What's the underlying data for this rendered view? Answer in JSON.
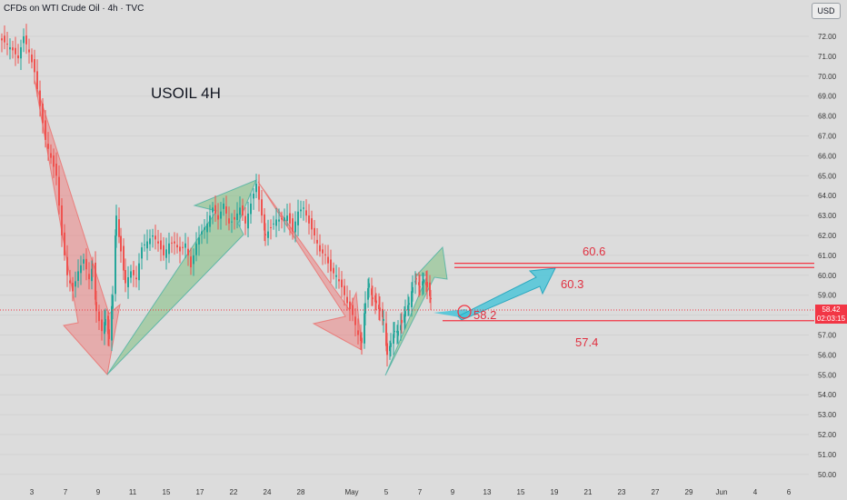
{
  "header": {
    "title": "CFDs on WTI Crude Oil · 4h · TVC"
  },
  "toolbar": {
    "currency": "USD"
  },
  "price_tag": {
    "price": "58.42",
    "countdown": "02:03:15"
  },
  "colors": {
    "bull": "#26a69a",
    "bear": "#ef5350",
    "level": "#f23645",
    "up_arrow": "#6ab86a",
    "down_arrow": "#ef7070",
    "target_arrow": "#3cc3d8"
  },
  "chart_data": {
    "type": "candlestick",
    "title": "USOIL 4H",
    "y_ticks": [
      "72.00",
      "71.00",
      "70.00",
      "69.00",
      "68.00",
      "67.00",
      "66.00",
      "65.00",
      "64.00",
      "63.00",
      "62.00",
      "61.00",
      "60.00",
      "59.00",
      "58.00",
      "57.00",
      "56.00",
      "55.00",
      "54.00",
      "53.00",
      "52.00",
      "51.00",
      "50.00"
    ],
    "x_ticks": [
      "3",
      "7",
      "9",
      "11",
      "15",
      "17",
      "22",
      "24",
      "28",
      "May",
      "5",
      "7",
      "9",
      "13",
      "15",
      "19",
      "21",
      "23",
      "27",
      "29",
      "Jun",
      "4",
      "6"
    ],
    "ylim": [
      49.8,
      72.9
    ],
    "price_path": [
      [
        0,
        71.8
      ],
      [
        6,
        71.6
      ],
      [
        12,
        71.3
      ],
      [
        18,
        70.9
      ],
      [
        24,
        72.0
      ],
      [
        30,
        71.2
      ],
      [
        36,
        70.2
      ],
      [
        42,
        68.5
      ],
      [
        48,
        66.8
      ],
      [
        54,
        65.9
      ],
      [
        60,
        65.0
      ],
      [
        66,
        62.0
      ],
      [
        72,
        60.0
      ],
      [
        78,
        59.2
      ],
      [
        84,
        60.2
      ],
      [
        90,
        60.8
      ],
      [
        96,
        59.8
      ],
      [
        100,
        60.5
      ],
      [
        104,
        58.2
      ],
      [
        110,
        57.2
      ],
      [
        114,
        57.8
      ],
      [
        118,
        56.8
      ],
      [
        122,
        59.0
      ],
      [
        126,
        63.0
      ],
      [
        131,
        61.2
      ],
      [
        136,
        59.6
      ],
      [
        142,
        60.2
      ],
      [
        148,
        59.8
      ],
      [
        154,
        61.4
      ],
      [
        160,
        61.7
      ],
      [
        166,
        62.0
      ],
      [
        172,
        61.6
      ],
      [
        178,
        61.0
      ],
      [
        184,
        61.6
      ],
      [
        190,
        61.6
      ],
      [
        196,
        61.2
      ],
      [
        202,
        61.6
      ],
      [
        208,
        60.4
      ],
      [
        214,
        61.6
      ],
      [
        220,
        62.2
      ],
      [
        226,
        62.6
      ],
      [
        232,
        63.4
      ],
      [
        238,
        62.8
      ],
      [
        244,
        63.6
      ],
      [
        250,
        62.6
      ],
      [
        256,
        62.8
      ],
      [
        262,
        63.4
      ],
      [
        268,
        62.6
      ],
      [
        274,
        63.6
      ],
      [
        280,
        64.6
      ],
      [
        286,
        63.0
      ],
      [
        290,
        62.0
      ],
      [
        296,
        62.4
      ],
      [
        302,
        62.8
      ],
      [
        308,
        62.8
      ],
      [
        314,
        63.0
      ],
      [
        320,
        62.2
      ],
      [
        326,
        63.2
      ],
      [
        332,
        63.4
      ],
      [
        338,
        62.6
      ],
      [
        344,
        62.0
      ],
      [
        350,
        61.2
      ],
      [
        356,
        61.0
      ],
      [
        362,
        60.2
      ],
      [
        368,
        60.0
      ],
      [
        374,
        59.4
      ],
      [
        380,
        58.6
      ],
      [
        386,
        58.0
      ],
      [
        392,
        57.0
      ],
      [
        396,
        56.6
      ],
      [
        400,
        58.6
      ],
      [
        404,
        59.6
      ],
      [
        408,
        58.8
      ],
      [
        412,
        58.6
      ],
      [
        416,
        58.2
      ],
      [
        420,
        57.8
      ],
      [
        424,
        56.0
      ],
      [
        428,
        56.6
      ],
      [
        432,
        57.2
      ],
      [
        436,
        57.2
      ],
      [
        440,
        57.6
      ],
      [
        444,
        58.2
      ],
      [
        448,
        58.6
      ],
      [
        452,
        59.4
      ],
      [
        456,
        59.8
      ],
      [
        460,
        59.4
      ],
      [
        464,
        59.8
      ],
      [
        468,
        59.4
      ],
      [
        472,
        58.8
      ],
      [
        474,
        58.4
      ]
    ],
    "annotations": [
      {
        "kind": "level",
        "value": 60.6,
        "label": "60.6"
      },
      {
        "kind": "level",
        "value": 60.3,
        "label": "60.3"
      },
      {
        "kind": "level",
        "value": 57.4,
        "label": "57.4"
      },
      {
        "kind": "point",
        "value": 58.2,
        "label": "58.2"
      }
    ]
  },
  "levels": {
    "l606": "60.6",
    "l603": "60.3",
    "l574": "57.4",
    "p582": "58.2"
  }
}
